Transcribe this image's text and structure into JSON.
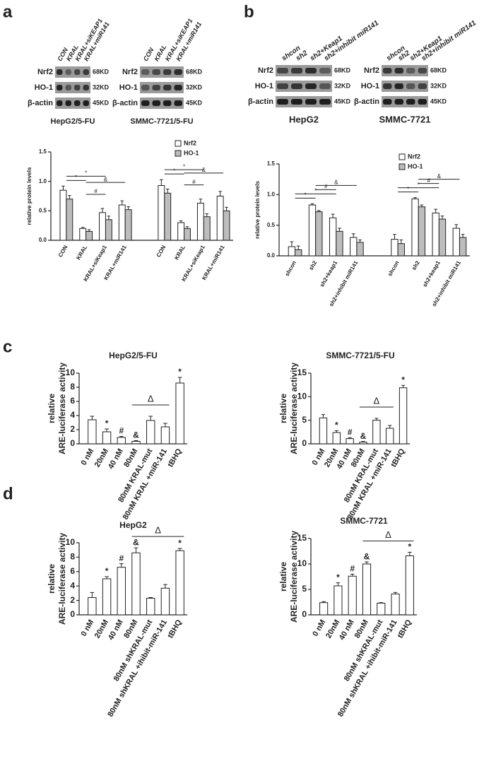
{
  "panel_labels": [
    "a",
    "b",
    "c",
    "d"
  ],
  "blots": [
    {
      "lanes": [
        "CON",
        "KRAL",
        "KRAL+siKEAP1",
        "KRAL+miR141"
      ],
      "rows": [
        "Nrf2",
        "HO-1",
        "β-actin"
      ],
      "sizes": [
        "68KD",
        "32KD",
        "45KD"
      ],
      "caption": "HepG2/5-FU"
    },
    {
      "lanes": [
        "CON",
        "KRAL",
        "KRAL+siKEAP1",
        "KRAL+miR141"
      ],
      "rows": [
        "Nrf2",
        "HO-1",
        "β-actin"
      ],
      "sizes": [
        "68KD",
        "32KD",
        "45KD"
      ],
      "caption": "SMMC-7721/5-FU"
    },
    {
      "lanes": [
        "shcon",
        "sh2",
        "sh2+Keap1",
        "sh2+inhibit miR141"
      ],
      "rows": [
        "Nrf2",
        "HO-1",
        "β-actin"
      ],
      "sizes": [
        "68KD",
        "32KD",
        "45KD"
      ],
      "caption": "HepG2"
    },
    {
      "lanes": [
        "shcon",
        "sh2",
        "sh2+Keap1",
        "sh2+inhibit miR141"
      ],
      "rows": [
        "Nrf2",
        "HO-1",
        "β-actin"
      ],
      "sizes": [
        "68KD",
        "32KD",
        "45KD"
      ],
      "caption": "SMMC-7721"
    }
  ],
  "chart_data": [
    {
      "type": "bar",
      "ylabel": "relative protein levels",
      "categories": [
        "CON",
        "KRAL",
        "KRAL+siKeap1",
        "KRAL+miR141",
        "CON",
        "KRAL",
        "KRAL+siKeap1",
        "KRAL+miR141"
      ],
      "series": [
        {
          "name": "Nrf2",
          "color": "#ffffff",
          "values": [
            0.85,
            0.2,
            0.47,
            0.6,
            0.93,
            0.3,
            0.63,
            0.75
          ],
          "errors": [
            0.07,
            0.02,
            0.07,
            0.07,
            0.1,
            0.03,
            0.07,
            0.08
          ]
        },
        {
          "name": "HO-1",
          "color": "#bdbdbd",
          "values": [
            0.7,
            0.15,
            0.35,
            0.52,
            0.8,
            0.2,
            0.4,
            0.5
          ],
          "errors": [
            0.06,
            0.03,
            0.06,
            0.05,
            0.07,
            0.03,
            0.05,
            0.06
          ]
        }
      ],
      "brackets": [
        "*",
        "*",
        "#",
        "&",
        "*",
        "*",
        "#",
        "&"
      ],
      "ylim": [
        0,
        1.5
      ],
      "yticks": [
        {
          "value": 0,
          "label": "0.0"
        },
        0.5,
        {
          "value": 1,
          "label": "1.0"
        },
        1.5
      ]
    },
    {
      "type": "bar",
      "ylabel": "relative protein levels",
      "categories": [
        "shcon",
        "sh2",
        "sh2+keap1",
        "sh2+inhibit miR141",
        "shcon",
        "sh2",
        "sh2+keap1",
        "sh2+inhibit miR141"
      ],
      "series": [
        {
          "name": "Nrf2",
          "color": "#ffffff",
          "values": [
            0.15,
            0.83,
            0.62,
            0.3,
            0.27,
            0.93,
            0.7,
            0.45
          ],
          "errors": [
            0.08,
            0.02,
            0.06,
            0.06,
            0.08,
            0.02,
            0.06,
            0.06
          ]
        },
        {
          "name": "HO-1",
          "color": "#bdbdbd",
          "values": [
            0.1,
            0.72,
            0.4,
            0.22,
            0.2,
            0.8,
            0.6,
            0.3
          ],
          "errors": [
            0.06,
            0.02,
            0.05,
            0.04,
            0.06,
            0.03,
            0.05,
            0.05
          ]
        }
      ],
      "brackets": [
        "*",
        "*",
        "#",
        "&",
        "*",
        "*",
        "#",
        "&"
      ],
      "ylim": [
        0,
        1.5
      ],
      "yticks": [
        {
          "value": 0,
          "label": "0.0"
        },
        0.5,
        {
          "value": 1,
          "label": "1.0"
        },
        1.5
      ]
    },
    {
      "type": "bar",
      "title": "HepG2/5-FU",
      "ylabel": [
        "relative",
        "ARE-luciferase activity"
      ],
      "categories": [
        "0 nM",
        "20nM",
        "40 nM",
        "80nM",
        "80nM KRAL-mut",
        "80nM KRAL +miR-141",
        "tBHQ"
      ],
      "values": [
        3.4,
        1.7,
        0.9,
        0.35,
        3.3,
        2.4,
        8.6
      ],
      "errors": [
        0.5,
        0.4,
        0.15,
        0.1,
        0.6,
        0.5,
        0.8
      ],
      "significance": [
        null,
        "*",
        "#",
        "&",
        null,
        null,
        "*"
      ],
      "bracket_label": "Δ",
      "color": "#ffffff",
      "ylim": [
        0,
        10
      ],
      "yticks": [
        0,
        2,
        4,
        6,
        8,
        10
      ]
    },
    {
      "type": "bar",
      "title": "SMMC-7721/5-FU",
      "ylabel": [
        "relative",
        "ARE-luciferase activity"
      ],
      "categories": [
        "0 nM",
        "20nM",
        "40 nM",
        "80nM",
        "80nM KRAL-mut",
        "80nM KRAL +miR-141",
        "tBHQ"
      ],
      "values": [
        5.5,
        2.4,
        1.1,
        0.35,
        5,
        3.3,
        11.9
      ],
      "errors": [
        0.7,
        0.4,
        0.2,
        0.15,
        0.4,
        0.6,
        0.5
      ],
      "significance": [
        null,
        "*",
        "#",
        "&",
        null,
        null,
        "*"
      ],
      "bracket_label": "Δ",
      "color": "#ffffff",
      "ylim": [
        0,
        15
      ],
      "yticks": [
        0,
        5,
        10,
        15
      ]
    },
    {
      "type": "bar",
      "title": "HepG2",
      "ylabel": [
        "relative",
        "ARE-luciferase activity"
      ],
      "categories": [
        "0 nM",
        "20nM",
        "40 nM",
        "80nM",
        "80nM shKRAL-mut",
        "80nM shKRAL +ihibit-miR-141",
        "tBHQ"
      ],
      "values": [
        2.4,
        5,
        6.6,
        8.6,
        2.3,
        3.7,
        8.9
      ],
      "errors": [
        0.7,
        0.3,
        0.5,
        0.7,
        0.1,
        0.5,
        0.3
      ],
      "significance": [
        null,
        "*",
        "#",
        "&",
        null,
        null,
        "*"
      ],
      "bracket_label": "Δ",
      "color": "#ffffff",
      "ylim": [
        0,
        10
      ],
      "yticks": [
        0,
        2,
        4,
        6,
        8,
        10
      ]
    },
    {
      "type": "bar",
      "title": "SMMC-7721",
      "ylabel": [
        "relative",
        "ARE-luciferase activity"
      ],
      "categories": [
        "0 nM",
        "20nM",
        "40 nM",
        "80nM",
        "80nM shKRAL-mut",
        "80nM shKRAL +ihibit-miR-141",
        "tBHQ"
      ],
      "values": [
        2.4,
        5.7,
        7.6,
        10,
        2.3,
        4.1,
        11.6
      ],
      "errors": [
        0.2,
        0.6,
        0.4,
        0.4,
        0.1,
        0.3,
        0.7
      ],
      "significance": [
        null,
        "*",
        "#",
        "&",
        null,
        null,
        "*"
      ],
      "bracket_label": "Δ",
      "color": "#ffffff",
      "ylim": [
        0,
        15
      ],
      "yticks": [
        0,
        5,
        10,
        15
      ]
    }
  ]
}
